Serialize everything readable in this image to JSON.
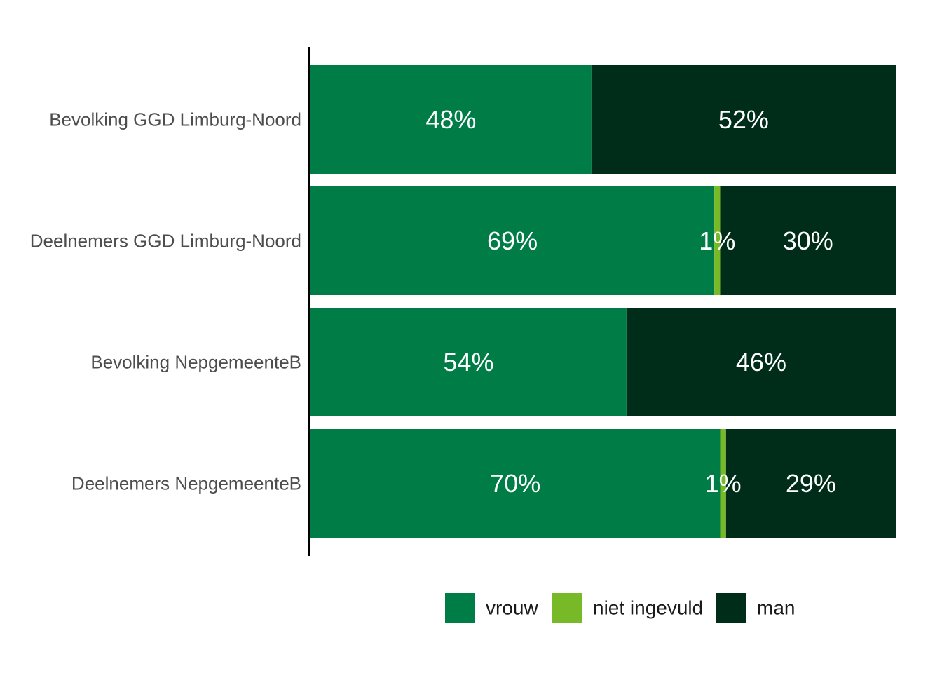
{
  "chart_data": {
    "type": "bar",
    "orientation": "horizontal",
    "stacked": true,
    "title": "",
    "xlabel": "",
    "ylabel": "",
    "xlim": [
      0,
      100
    ],
    "grid": false,
    "legend_position": "bottom",
    "categories": [
      "Bevolking GGD Limburg-Noord",
      "Deelnemers GGD Limburg-Noord",
      "Bevolking NepgemeenteB",
      "Deelnemers NepgemeenteB"
    ],
    "series": [
      {
        "name": "vrouw",
        "color": "#007d46",
        "values": [
          48,
          69,
          54,
          70
        ],
        "labels": [
          "48%",
          "69%",
          "54%",
          "70%"
        ]
      },
      {
        "name": "niet ingevuld",
        "color": "#78b928",
        "values": [
          0,
          1,
          0,
          1
        ],
        "labels": [
          "",
          "1%",
          "",
          "1%"
        ]
      },
      {
        "name": "man",
        "color": "#002d19",
        "values": [
          52,
          30,
          46,
          29
        ],
        "labels": [
          "52%",
          "30%",
          "46%",
          "29%"
        ]
      }
    ]
  }
}
